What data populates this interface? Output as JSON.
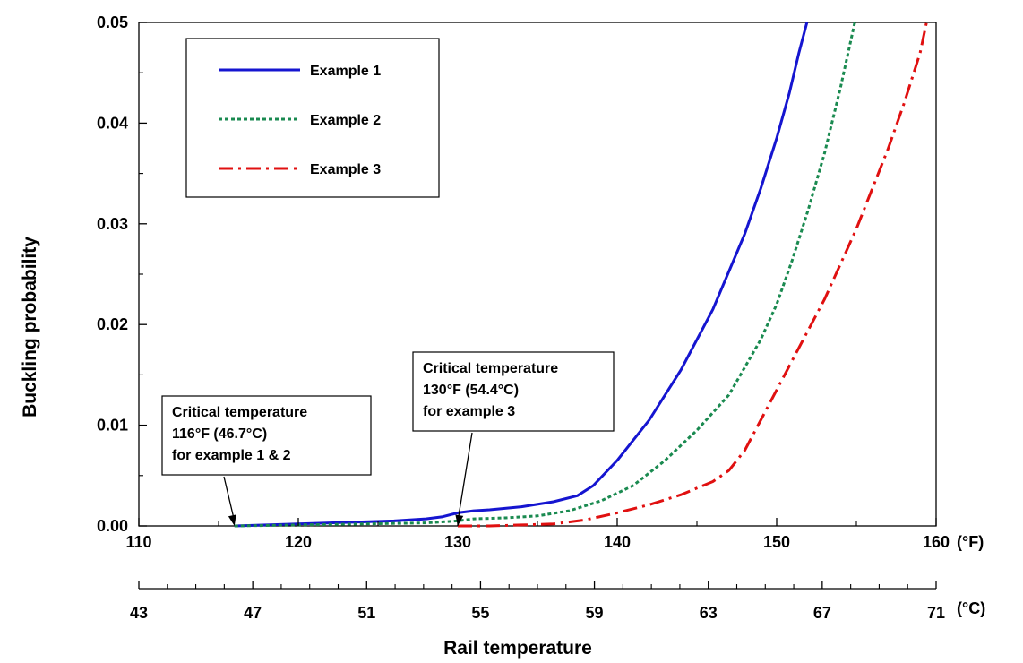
{
  "chart_data": {
    "type": "line",
    "xlabel": "Rail temperature",
    "ylabel": "Buckling probability",
    "x_unit_primary": "(°F)",
    "x_unit_secondary": "(°C)",
    "xlim": [
      110,
      160
    ],
    "ylim": [
      0,
      0.05
    ],
    "x_ticks": [
      "110",
      "120",
      "130",
      "140",
      "150",
      "160"
    ],
    "y_ticks": [
      "0.00",
      "0.01",
      "0.02",
      "0.03",
      "0.04",
      "0.05"
    ],
    "celsius_ticks": [
      "43",
      "47",
      "51",
      "55",
      "59",
      "63",
      "67",
      "71"
    ],
    "celsius_minor_step": 1,
    "grid": false,
    "legend_position": "top-left",
    "series": [
      {
        "name": "Example 1",
        "color": "#1515d0",
        "dash": "solid",
        "x": [
          116,
          118,
          120,
          122,
          124,
          126,
          128,
          129,
          130,
          131,
          132,
          134,
          136,
          137.5,
          138.5,
          140,
          142,
          144,
          146,
          148,
          149,
          150,
          150.8,
          151.4,
          151.9
        ],
        "y": [
          0.0,
          0.0001,
          0.0002,
          0.0003,
          0.0004,
          0.0005,
          0.0007,
          0.0009,
          0.0013,
          0.0015,
          0.0016,
          0.0019,
          0.0024,
          0.003,
          0.004,
          0.0065,
          0.0105,
          0.0155,
          0.0215,
          0.029,
          0.0335,
          0.0385,
          0.043,
          0.047,
          0.05
        ]
      },
      {
        "name": "Example 2",
        "color": "#1a8a50",
        "dash": "dotted",
        "x": [
          116,
          120,
          124,
          128,
          130,
          131,
          133,
          135,
          137,
          139,
          141,
          143,
          145,
          147,
          149,
          150,
          151,
          152,
          153,
          154,
          154.9
        ],
        "y": [
          0.0,
          0.0001,
          0.0002,
          0.0003,
          0.0005,
          0.0007,
          0.0008,
          0.001,
          0.0015,
          0.0025,
          0.004,
          0.0065,
          0.0095,
          0.013,
          0.0185,
          0.022,
          0.0265,
          0.0315,
          0.037,
          0.0435,
          0.05
        ]
      },
      {
        "name": "Example 3",
        "color": "#e01010",
        "dash": "dashdot",
        "x": [
          130,
          132,
          134,
          136,
          138,
          140,
          142,
          144,
          146,
          147,
          148,
          149,
          150,
          151,
          152,
          153,
          154,
          155,
          156,
          157,
          158,
          159,
          159.4
        ],
        "y": [
          0.0,
          0.0,
          0.0001,
          0.0002,
          0.0006,
          0.0013,
          0.0021,
          0.0031,
          0.0044,
          0.0055,
          0.0075,
          0.0105,
          0.0135,
          0.0165,
          0.0195,
          0.0225,
          0.026,
          0.0295,
          0.0335,
          0.0375,
          0.042,
          0.047,
          0.05
        ]
      }
    ],
    "annotations": [
      {
        "lines": [
          "Critical temperature",
          "116°F (46.7°C)",
          "for example 1 & 2"
        ],
        "target_x": 116,
        "target_y": 0
      },
      {
        "lines": [
          "Critical temperature",
          "130°F (54.4°C)",
          "for example 3"
        ],
        "target_x": 130,
        "target_y": 0
      }
    ]
  }
}
